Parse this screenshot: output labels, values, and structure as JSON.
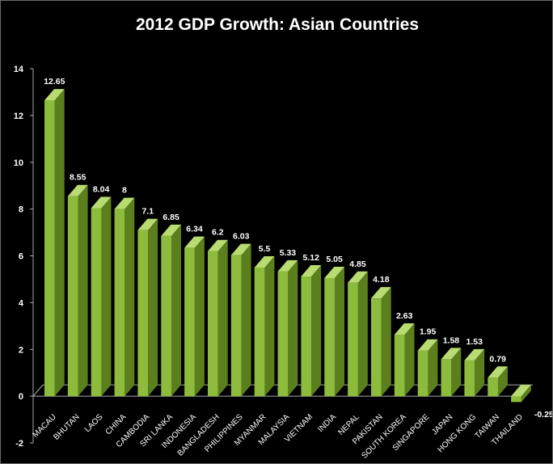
{
  "chart_data": {
    "type": "bar",
    "title": "2012 GDP Growth: Asian Countries",
    "xlabel": "",
    "ylabel": "",
    "ylim": [
      -2,
      14
    ],
    "yticks": [
      -2,
      0,
      2,
      4,
      6,
      8,
      10,
      12,
      14
    ],
    "grid": false,
    "legend": "none",
    "categories": [
      "MACAU",
      "BHUTAN",
      "LAOS",
      "CHINA",
      "CAMBODIA",
      "SRI LANKA",
      "INDONESIA",
      "BANGLADESH",
      "PHILIPPINES",
      "MYANMAR",
      "MALAYSIA",
      "VIETNAM",
      "INDIA",
      "NEPAL",
      "PAKISTAN",
      "SOUTH KOREA",
      "SINGAPORE",
      "JAPAN",
      "HONG KONG",
      "TAIWAN",
      "THAILAND"
    ],
    "values": [
      12.65,
      8.55,
      8.04,
      8,
      7.1,
      6.85,
      6.34,
      6.2,
      6.03,
      5.5,
      5.33,
      5.12,
      5.05,
      4.85,
      4.18,
      2.63,
      1.95,
      1.58,
      1.53,
      0.79,
      -0.25
    ],
    "data_labels": [
      "12.65",
      "8.55",
      "8.04",
      "8",
      "7.1",
      "6.85",
      "6.34",
      "6.2",
      "6.03",
      "5.5",
      "5.33",
      "5.12",
      "5.05",
      "4.85",
      "4.18",
      "2.63",
      "1.95",
      "1.58",
      "1.53",
      "0.79",
      "-0.25"
    ],
    "colors": {
      "bar_front": "#8dbb3c",
      "bar_side": "#5c7f1e",
      "bar_top": "#b9dc72",
      "axis": "#a8a8a8",
      "background": "#000000",
      "text": "#ffffff"
    }
  }
}
